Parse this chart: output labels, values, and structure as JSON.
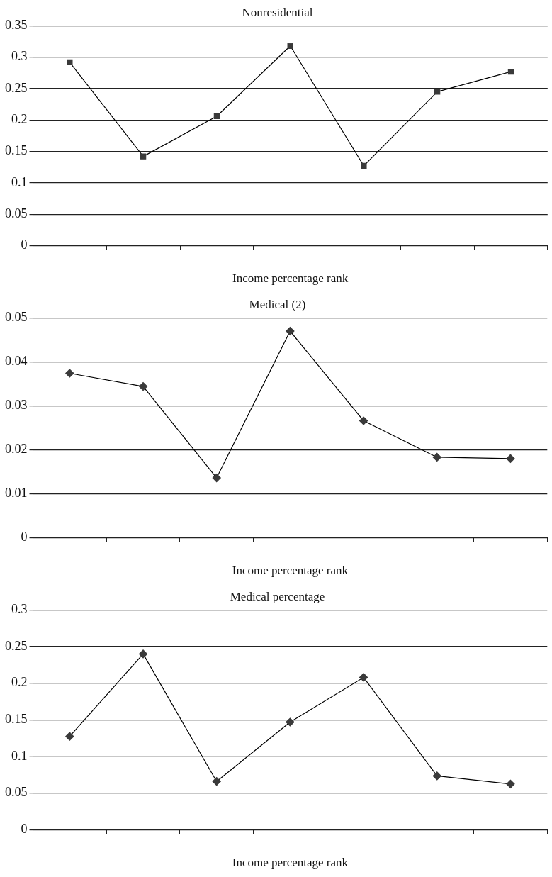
{
  "chart_data": [
    {
      "type": "line",
      "title": "Nonresidential",
      "xlabel": "Income percentage rank",
      "categories": [
        null,
        null,
        null,
        null,
        null,
        null,
        null
      ],
      "series": [
        {
          "color": "#3a3a3a",
          "values": [
            0.292,
            0.142,
            0.206,
            0.318,
            0.127,
            0.245,
            0.277
          ]
        }
      ],
      "ylim": [
        0,
        0.35
      ],
      "yticks": [
        0,
        0.05,
        0.1,
        0.15,
        0.2,
        0.25,
        0.3,
        0.35
      ],
      "grid": "y",
      "legend": false,
      "marker": "square",
      "line_style": "solid"
    },
    {
      "type": "line",
      "title": "Medical (2)",
      "xlabel": "Income percentage rank",
      "categories": [
        null,
        null,
        null,
        null,
        null,
        null,
        null
      ],
      "series": [
        {
          "color": "#3a3a3a",
          "values": [
            0.0374,
            0.0344,
            0.0136,
            0.047,
            0.0266,
            0.0183,
            0.018
          ]
        }
      ],
      "ylim": [
        0,
        0.05
      ],
      "yticks": [
        0,
        0.01,
        0.02,
        0.03,
        0.04,
        0.05
      ],
      "grid": "y",
      "legend": false,
      "marker": "diamond",
      "line_style": "solid"
    },
    {
      "type": "line",
      "title": "Medical percentage",
      "xlabel": "Income percentage rank",
      "categories": [
        null,
        null,
        null,
        null,
        null,
        null,
        null
      ],
      "series": [
        {
          "color": "#3a3a3a",
          "values": [
            0.1275,
            0.24,
            0.066,
            0.147,
            0.208,
            0.0735,
            0.0625
          ]
        }
      ],
      "ylim": [
        0,
        0.3
      ],
      "yticks": [
        0,
        0.05,
        0.1,
        0.15,
        0.2,
        0.25,
        0.3
      ],
      "grid": "y",
      "legend": false,
      "marker": "diamond",
      "line_style": "solid"
    }
  ]
}
